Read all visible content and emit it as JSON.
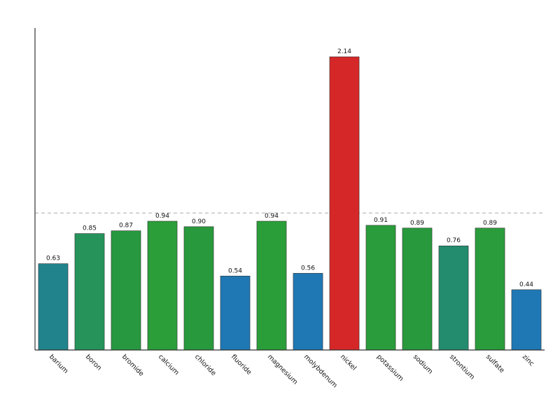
{
  "chart_data": {
    "type": "bar",
    "categories": [
      "barium",
      "boron",
      "bromide",
      "calcium",
      "chloride",
      "fluoride",
      "magnesium",
      "molybdenum",
      "nickel",
      "potassium",
      "sodium",
      "strontium",
      "sulfate",
      "zinc"
    ],
    "values": [
      0.63,
      0.85,
      0.87,
      0.94,
      0.9,
      0.54,
      0.94,
      0.56,
      2.14,
      0.91,
      0.89,
      0.76,
      0.89,
      0.44
    ],
    "value_labels": [
      "0.63",
      "0.85",
      "0.87",
      "0.94",
      "0.90",
      "0.54",
      "0.94",
      "0.56",
      "2.14",
      "0.91",
      "0.89",
      "0.76",
      "0.89",
      "0.44"
    ],
    "colors": [
      "#21838c",
      "#25935a",
      "#27983f",
      "#2b9e3a",
      "#28993c",
      "#1f78b4",
      "#2a9e39",
      "#1f78b4",
      "#d62728",
      "#2a9c3b",
      "#28993d",
      "#238b6e",
      "#2a9c3b",
      "#1f78b4"
    ],
    "reference_line": 1.0,
    "ylim": [
      0,
      2.35
    ],
    "title": "",
    "xlabel": "",
    "ylabel": "",
    "grid": false,
    "legend": "none"
  }
}
